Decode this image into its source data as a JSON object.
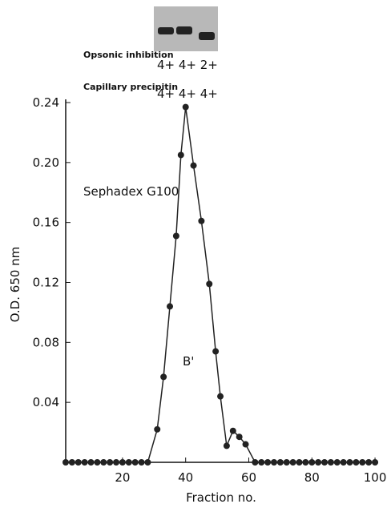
{
  "chart_data": {
    "type": "line",
    "x_label": "Fraction no.",
    "y_label": "O.D. 650 nm",
    "annotations": {
      "row1_label": "Opsonic inhibition",
      "row1_values": "4+ 4+ 2+",
      "row2_label": "Capillary precipitin",
      "row2_values": "4+ 4+ 4+",
      "column": "Sephadex G100",
      "peak": "B'"
    },
    "x": [
      2,
      4,
      6,
      8,
      10,
      12,
      14,
      16,
      18,
      20,
      22,
      24,
      26,
      28,
      31,
      33,
      35,
      37,
      38.5,
      40,
      42.5,
      45,
      47.5,
      49.5,
      51,
      53,
      55,
      57,
      59,
      62,
      64,
      66,
      68,
      70,
      72,
      74,
      76,
      78,
      80,
      82,
      84,
      86,
      88,
      90,
      92,
      94,
      96,
      98,
      100
    ],
    "series": [
      {
        "color": "#222222",
        "values": [
          0,
          0,
          0,
          0,
          0,
          0,
          0,
          0,
          0,
          0,
          0,
          0,
          0,
          0,
          0.022,
          0.057,
          0.104,
          0.151,
          0.205,
          0.237,
          0.198,
          0.161,
          0.119,
          0.074,
          0.044,
          0.011,
          0.021,
          0.017,
          0.012,
          0,
          0,
          0,
          0,
          0,
          0,
          0,
          0,
          0,
          0,
          0,
          0,
          0,
          0,
          0,
          0,
          0,
          0,
          0,
          0
        ]
      }
    ],
    "xlim": [
      2,
      101
    ],
    "ylim": [
      0,
      0.24
    ],
    "xticks": [
      20,
      40,
      60,
      80,
      100
    ],
    "yticks": [
      0.04,
      0.08,
      0.12,
      0.16,
      {
        "value": 0.2,
        "label": "0.20"
      },
      0.24
    ]
  }
}
